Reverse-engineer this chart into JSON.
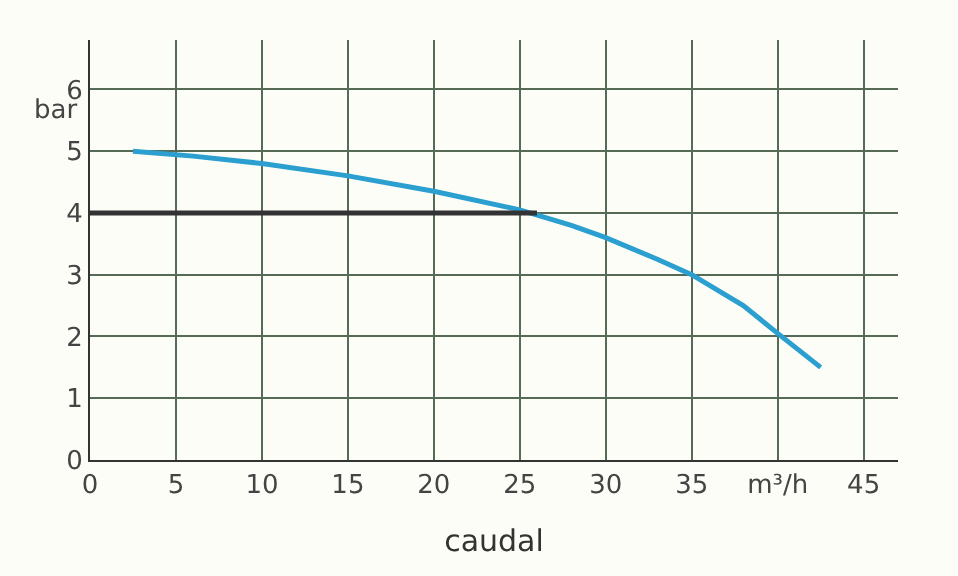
{
  "chart_data": {
    "type": "line",
    "xlabel": "caudal",
    "ylabel": "bar",
    "xlim": [
      0,
      47
    ],
    "ylim": [
      0,
      6.8
    ],
    "xticks": [
      0,
      5,
      10,
      15,
      20,
      25,
      30,
      35,
      {
        "value": 40,
        "label": "m³/h"
      },
      45
    ],
    "yticks": [
      0,
      1,
      2,
      3,
      4,
      5,
      6
    ],
    "grid": true,
    "marker": "none",
    "line_style": "solid",
    "series": [
      {
        "color": "#2a9fd0",
        "x": [
          2.5,
          6,
          10,
          15,
          20,
          25,
          28,
          30,
          33,
          35,
          38,
          40,
          42.5
        ],
        "values": [
          5.0,
          4.92,
          4.8,
          4.6,
          4.35,
          4.05,
          3.8,
          3.6,
          3.25,
          3.0,
          2.5,
          2.05,
          1.5
        ]
      },
      {
        "color": "#333333",
        "x": [
          0,
          26
        ],
        "values": [
          4,
          4
        ]
      }
    ]
  }
}
